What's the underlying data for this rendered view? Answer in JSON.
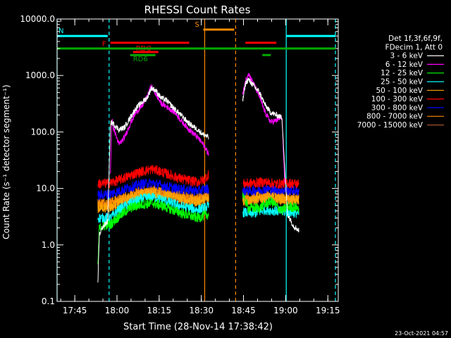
{
  "chart_data": {
    "type": "line",
    "title": "RHESSI Count Rates",
    "xlabel": "Start Time (28-Nov-14 17:38:42)",
    "ylabel": "Count Rate (s⁻¹ detector segment⁻¹)",
    "x_unit": "minutes after 17:38:42",
    "x_range": [
      0,
      100
    ],
    "ylim": [
      0.1,
      10000
    ],
    "y_scale": "log",
    "x_ticks": [
      {
        "t": 6.3,
        "label": "17:45"
      },
      {
        "t": 21.3,
        "label": "18:00"
      },
      {
        "t": 36.3,
        "label": "18:15"
      },
      {
        "t": 51.3,
        "label": "18:30"
      },
      {
        "t": 66.3,
        "label": "18:45"
      },
      {
        "t": 81.3,
        "label": "19:00"
      },
      {
        "t": 96.3,
        "label": "19:15"
      }
    ],
    "y_ticks": [
      {
        "v": 0.1,
        "label": "0.1"
      },
      {
        "v": 1,
        "label": "1.0"
      },
      {
        "v": 10,
        "label": "10.0"
      },
      {
        "v": 100,
        "label": "100.0"
      },
      {
        "v": 1000,
        "label": "1000.0"
      },
      {
        "v": 10000,
        "label": "10000.0"
      }
    ],
    "legend": {
      "placement": "right",
      "header": [
        "Det 1f,3f,6f,9f,",
        "FDecim 1, Att 0"
      ],
      "entries": [
        {
          "name": "3 - 6 keV",
          "color": "#ffffff"
        },
        {
          "name": "6 - 12 keV",
          "color": "#ff00ff"
        },
        {
          "name": "12 - 25 keV",
          "color": "#00ff00"
        },
        {
          "name": "25 - 50 keV",
          "color": "#00ffff"
        },
        {
          "name": "50 - 100 keV",
          "color": "#ffa500"
        },
        {
          "name": "100 - 300 keV",
          "color": "#ff0000"
        },
        {
          "name": "300 - 800 keV",
          "color": "#0000ff"
        },
        {
          "name": "800 - 7000 keV",
          "color": "#ff8c00"
        },
        {
          "name": "7000 - 15000 keV",
          "color": "#a0522d"
        }
      ]
    },
    "flag_bars": [
      {
        "label": "N",
        "color": "#00ffff",
        "y": 5000,
        "segments": [
          [
            0,
            18
          ],
          [
            81.5,
            99
          ]
        ]
      },
      {
        "label": "S",
        "color": "#ff8c00",
        "y": 6500,
        "segments": [
          [
            52,
            63
          ]
        ]
      },
      {
        "label": "F",
        "color": "#ff0000",
        "y": 3800,
        "segments": [
          [
            19,
            47
          ],
          [
            67,
            78
          ]
        ]
      },
      {
        "label": "RDO",
        "color": "#ff0000",
        "y": 2600,
        "segments": [
          [
            27,
            36
          ]
        ]
      },
      {
        "label": "",
        "color": "#00aa00",
        "y": 3000,
        "segments": [
          [
            0,
            99
          ]
        ]
      },
      {
        "label": "RD6",
        "color": "#00aa00",
        "y": 2300,
        "segments": [
          [
            26,
            35
          ],
          [
            73,
            76
          ]
        ]
      }
    ],
    "vertical_lines": [
      {
        "t": 0,
        "color": "#00ffff",
        "style": "solid"
      },
      {
        "t": 18.5,
        "color": "#00ffff",
        "style": "dashed"
      },
      {
        "t": 52.5,
        "color": "#ff8c00",
        "style": "solid"
      },
      {
        "t": 63.5,
        "color": "#ff8c00",
        "style": "dashed"
      },
      {
        "t": 81.5,
        "color": "#00ffff",
        "style": "solid"
      },
      {
        "t": 99,
        "color": "#00ffff",
        "style": "dashed"
      }
    ],
    "data_segments": [
      {
        "start": 14.5,
        "end": 54
      },
      {
        "start": 66,
        "end": 86
      }
    ],
    "series": [
      {
        "name": "3 - 6 keV",
        "color": "#ffffff",
        "points": [
          [
            14.5,
            0.2
          ],
          [
            15,
            1.5
          ],
          [
            16,
            2.0
          ],
          [
            18,
            2.6
          ],
          [
            19,
            150
          ],
          [
            20,
            140
          ],
          [
            22,
            110
          ],
          [
            24,
            120
          ],
          [
            26,
            180
          ],
          [
            28,
            260
          ],
          [
            30,
            330
          ],
          [
            32,
            400
          ],
          [
            33.5,
            600
          ],
          [
            35,
            550
          ],
          [
            37,
            400
          ],
          [
            39,
            360
          ],
          [
            41,
            280
          ],
          [
            44,
            200
          ],
          [
            47,
            140
          ],
          [
            50,
            110
          ],
          [
            52,
            90
          ],
          [
            54,
            80
          ],
          [
            66,
            350
          ],
          [
            67,
            720
          ],
          [
            68,
            850
          ],
          [
            70,
            650
          ],
          [
            72,
            500
          ],
          [
            74,
            300
          ],
          [
            76,
            220
          ],
          [
            78,
            200
          ],
          [
            80,
            180
          ],
          [
            81,
            20
          ],
          [
            82,
            3.5
          ],
          [
            84,
            2.2
          ],
          [
            86,
            1.8
          ],
          [
            86.3,
            0.4
          ]
        ]
      },
      {
        "name": "6 - 12 keV",
        "color": "#ff00ff",
        "points": [
          [
            19,
            20
          ],
          [
            19.5,
            180
          ],
          [
            20,
            120
          ],
          [
            22,
            60
          ],
          [
            24,
            80
          ],
          [
            26,
            140
          ],
          [
            28,
            220
          ],
          [
            30,
            280
          ],
          [
            32,
            420
          ],
          [
            33.5,
            650
          ],
          [
            35,
            480
          ],
          [
            37,
            320
          ],
          [
            39,
            280
          ],
          [
            42,
            220
          ],
          [
            44,
            160
          ],
          [
            47,
            110
          ],
          [
            50,
            80
          ],
          [
            52,
            60
          ],
          [
            54,
            40
          ],
          [
            66,
            450
          ],
          [
            67,
            800
          ],
          [
            68,
            1100
          ],
          [
            70,
            700
          ],
          [
            72,
            420
          ],
          [
            74,
            220
          ],
          [
            76,
            150
          ],
          [
            78,
            160
          ],
          [
            80,
            180
          ],
          [
            81,
            10
          ]
        ]
      },
      {
        "name": "12 - 25 keV",
        "color": "#00ff00",
        "points": [
          [
            14.5,
            0.4
          ],
          [
            15,
            2.0
          ],
          [
            17,
            2.2
          ],
          [
            19,
            2.3
          ],
          [
            22,
            3.2
          ],
          [
            26,
            4.5
          ],
          [
            30,
            5.2
          ],
          [
            34,
            5.5
          ],
          [
            38,
            4.8
          ],
          [
            42,
            4.0
          ],
          [
            46,
            3.4
          ],
          [
            50,
            3.0
          ],
          [
            54,
            3.5
          ],
          [
            66,
            8.0
          ],
          [
            68,
            4.5
          ],
          [
            72,
            4.5
          ],
          [
            76,
            6.0
          ],
          [
            80,
            4.0
          ],
          [
            82,
            4.8
          ],
          [
            86,
            4.5
          ]
        ]
      },
      {
        "name": "25 - 50 keV",
        "color": "#00ffff",
        "points": [
          [
            14.5,
            3.0
          ],
          [
            19,
            3.0
          ],
          [
            22,
            4.2
          ],
          [
            26,
            5.5
          ],
          [
            30,
            6.5
          ],
          [
            34,
            7.0
          ],
          [
            38,
            6.2
          ],
          [
            42,
            5.2
          ],
          [
            46,
            4.6
          ],
          [
            50,
            4.2
          ],
          [
            54,
            4.8
          ],
          [
            66,
            3.8
          ],
          [
            70,
            3.6
          ],
          [
            74,
            4.2
          ],
          [
            78,
            4.0
          ],
          [
            82,
            3.8
          ],
          [
            86,
            3.6
          ]
        ]
      },
      {
        "name": "50 - 100 keV",
        "color": "#ffa500",
        "points": [
          [
            14.5,
            4.5
          ],
          [
            19,
            4.6
          ],
          [
            22,
            5.5
          ],
          [
            26,
            6.8
          ],
          [
            30,
            7.8
          ],
          [
            34,
            8.2
          ],
          [
            38,
            7.5
          ],
          [
            42,
            6.8
          ],
          [
            46,
            6.0
          ],
          [
            50,
            5.8
          ],
          [
            54,
            6.5
          ],
          [
            66,
            6.0
          ],
          [
            70,
            6.2
          ],
          [
            74,
            6.8
          ],
          [
            78,
            6.5
          ],
          [
            82,
            6.2
          ],
          [
            86,
            6.0
          ]
        ]
      },
      {
        "name": "100 - 300 keV",
        "color": "#ff0000",
        "points": [
          [
            14.5,
            12
          ],
          [
            19,
            12.5
          ],
          [
            22,
            14
          ],
          [
            26,
            17
          ],
          [
            30,
            20
          ],
          [
            34,
            22
          ],
          [
            38,
            19
          ],
          [
            42,
            16
          ],
          [
            46,
            14
          ],
          [
            50,
            13
          ],
          [
            52,
            14
          ],
          [
            54,
            18
          ],
          [
            66,
            12
          ],
          [
            70,
            12.5
          ],
          [
            74,
            13
          ],
          [
            78,
            12
          ],
          [
            82,
            12.5
          ],
          [
            86,
            12
          ]
        ]
      },
      {
        "name": "300 - 800 keV",
        "color": "#0000ff",
        "points": [
          [
            14.5,
            7.5
          ],
          [
            19,
            8
          ],
          [
            22,
            9
          ],
          [
            26,
            10.5
          ],
          [
            30,
            12
          ],
          [
            34,
            12.5
          ],
          [
            38,
            11
          ],
          [
            42,
            10
          ],
          [
            46,
            9.5
          ],
          [
            50,
            9
          ],
          [
            54,
            10
          ],
          [
            66,
            9
          ],
          [
            70,
            9.2
          ],
          [
            74,
            9.8
          ],
          [
            78,
            9.5
          ],
          [
            82,
            9.2
          ],
          [
            86,
            9
          ]
        ]
      },
      {
        "name": "800 - 7000 keV",
        "color": "#ff8c00",
        "points": [
          [
            14.5,
            5.5
          ],
          [
            19,
            5.8
          ],
          [
            22,
            6.5
          ],
          [
            26,
            7.8
          ],
          [
            30,
            9
          ],
          [
            34,
            9.5
          ],
          [
            38,
            8.5
          ],
          [
            42,
            7.8
          ],
          [
            46,
            7.2
          ],
          [
            50,
            6.8
          ],
          [
            54,
            7.5
          ],
          [
            66,
            7
          ],
          [
            70,
            7.2
          ],
          [
            74,
            7.8
          ],
          [
            78,
            7.5
          ],
          [
            82,
            7.2
          ],
          [
            86,
            7
          ]
        ]
      },
      {
        "name": "7000 - 15000 keV",
        "color": "#a0522d",
        "points": [
          [
            14.5,
            5.0
          ],
          [
            19,
            5.2
          ],
          [
            22,
            5.8
          ],
          [
            26,
            7.0
          ],
          [
            30,
            8.0
          ],
          [
            34,
            8.5
          ],
          [
            38,
            7.6
          ],
          [
            42,
            7.0
          ],
          [
            46,
            6.5
          ],
          [
            50,
            6.2
          ],
          [
            54,
            6.8
          ],
          [
            66,
            6.2
          ],
          [
            70,
            6.4
          ],
          [
            74,
            6.8
          ],
          [
            78,
            6.6
          ],
          [
            82,
            6.4
          ],
          [
            86,
            6.2
          ]
        ]
      }
    ],
    "footer_timestamp": "23-Oct-2021 04:57"
  }
}
